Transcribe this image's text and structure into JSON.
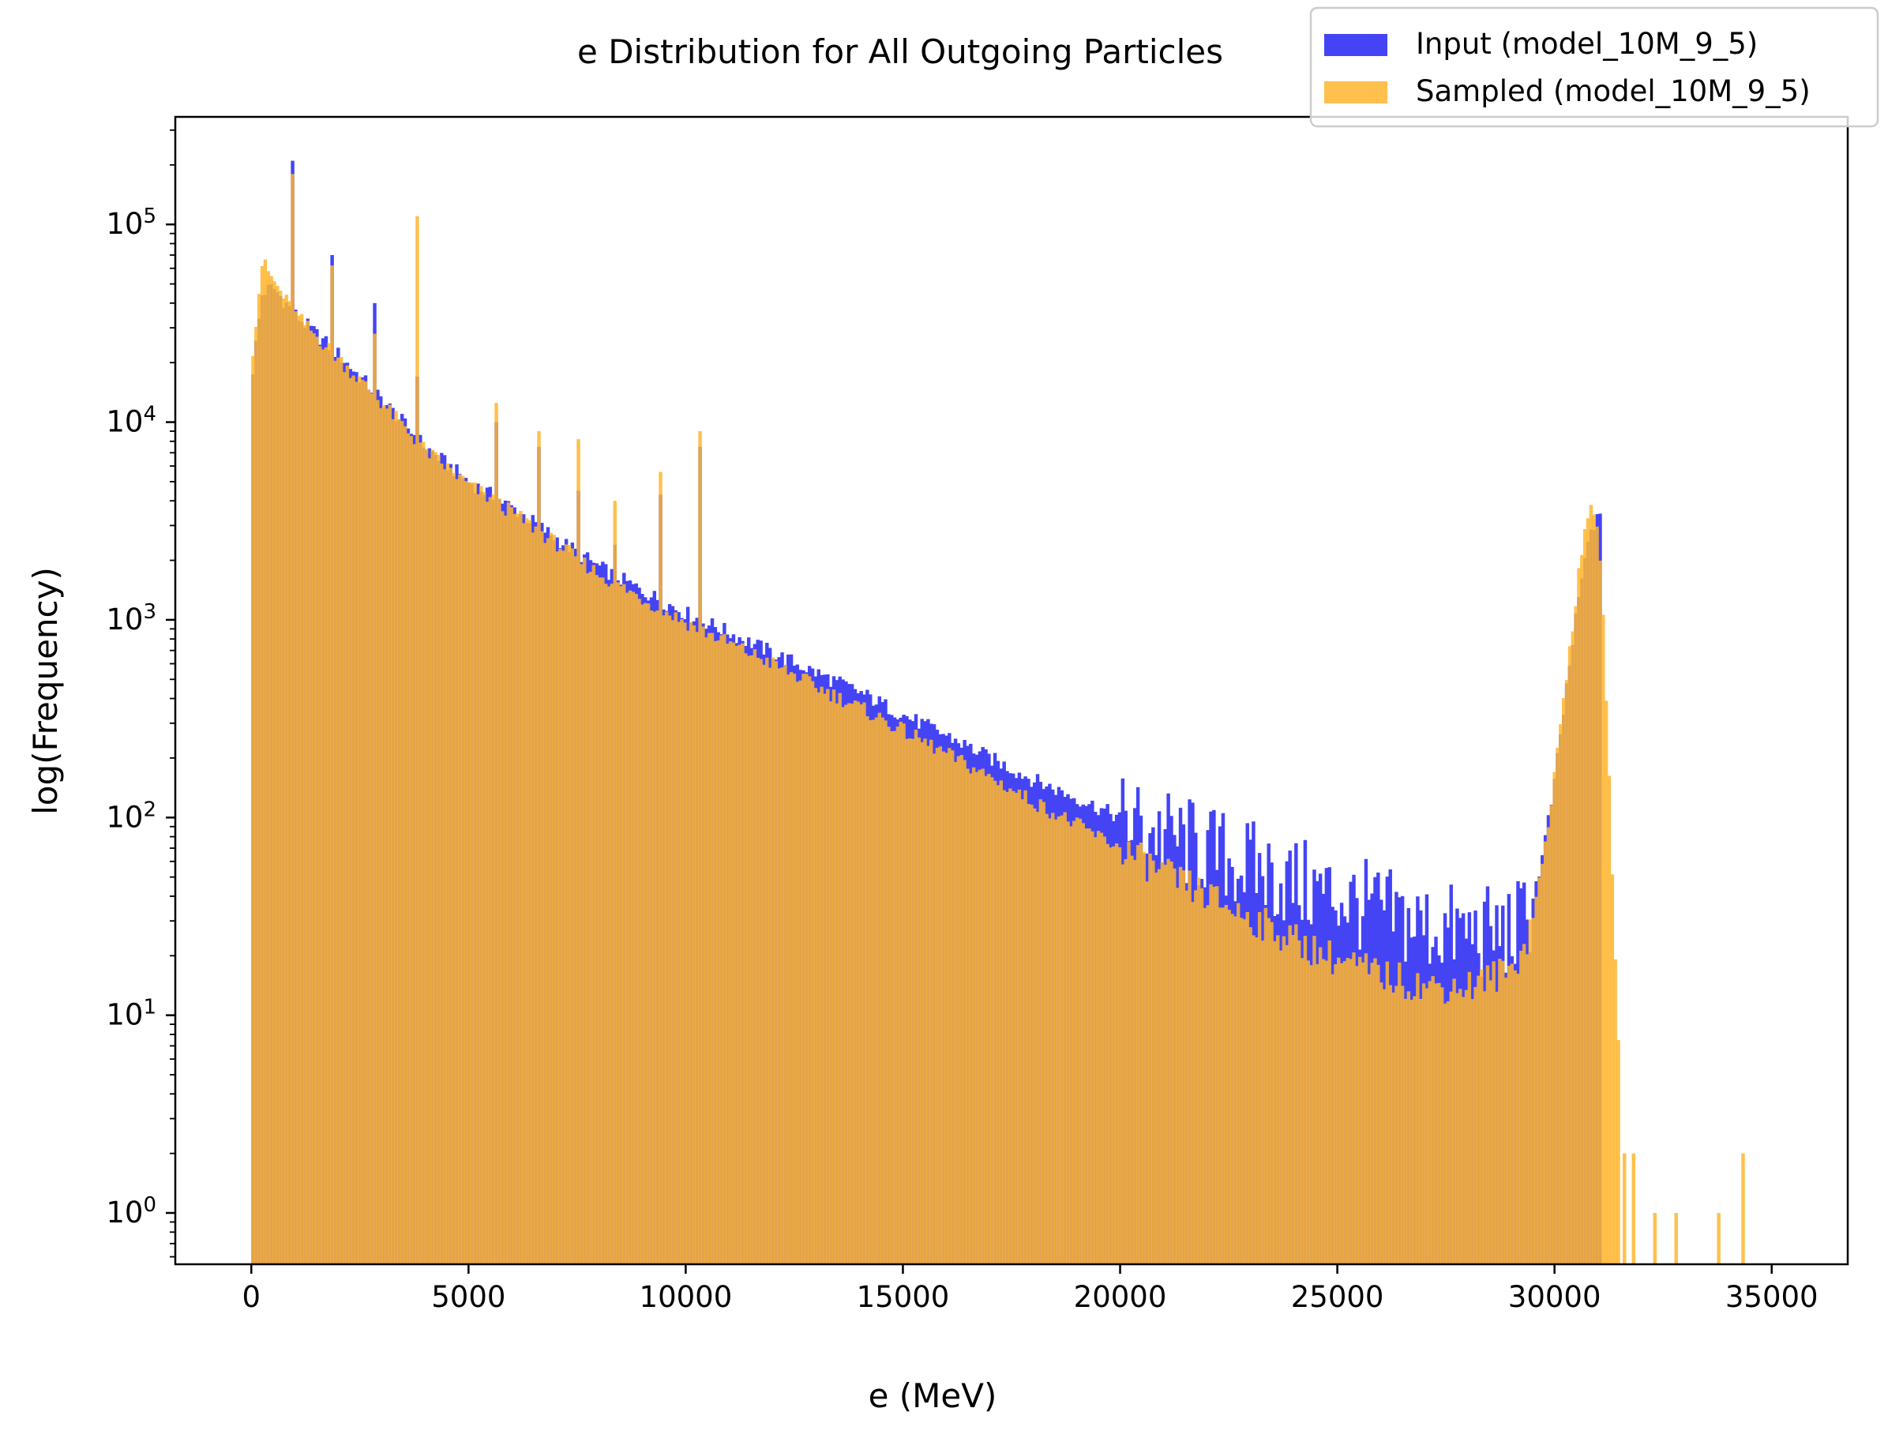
{
  "chart_data": {
    "type": "histogram",
    "title": "e Distribution for All Outgoing Particles",
    "xlabel": "e (MeV)",
    "ylabel": "log(Frequency)",
    "xlim": [
      -1750,
      36750
    ],
    "ylim": [
      0.55,
      350000
    ],
    "y_scale": "log",
    "grid": false,
    "legend_position": "top-right",
    "x_ticks": [
      0,
      5000,
      10000,
      15000,
      20000,
      25000,
      30000,
      35000
    ],
    "y_ticks": [
      {
        "base": "10",
        "exp": "0",
        "value": 1
      },
      {
        "base": "10",
        "exp": "1",
        "value": 10
      },
      {
        "base": "10",
        "exp": "2",
        "value": 100
      },
      {
        "base": "10",
        "exp": "3",
        "value": 1000
      },
      {
        "base": "10",
        "exp": "4",
        "value": 10000
      },
      {
        "base": "10",
        "exp": "5",
        "value": 100000
      }
    ],
    "series": [
      {
        "name": "Input (model_10M_9_5)",
        "color": "#4444f5",
        "alpha": 1.0,
        "continuum": [
          [
            0,
            16000
          ],
          [
            250,
            45000
          ],
          [
            500,
            48000
          ],
          [
            1000,
            35000
          ],
          [
            2000,
            22000
          ],
          [
            3000,
            13000
          ],
          [
            4000,
            7500
          ],
          [
            5000,
            5000
          ],
          [
            6000,
            3700
          ],
          [
            7000,
            2600
          ],
          [
            8000,
            1850
          ],
          [
            9000,
            1400
          ],
          [
            10000,
            1080
          ],
          [
            11000,
            860
          ],
          [
            12000,
            680
          ],
          [
            13000,
            540
          ],
          [
            14000,
            430
          ],
          [
            15000,
            330
          ],
          [
            16000,
            260
          ],
          [
            17000,
            200
          ],
          [
            18000,
            155
          ],
          [
            19000,
            125
          ],
          [
            20000,
            100
          ],
          [
            21000,
            82
          ],
          [
            22000,
            68
          ],
          [
            23000,
            56
          ],
          [
            24000,
            46
          ],
          [
            25000,
            40
          ],
          [
            26000,
            33
          ],
          [
            27000,
            28
          ],
          [
            28000,
            26
          ],
          [
            29000,
            26
          ],
          [
            29400,
            32
          ],
          [
            29700,
            60
          ],
          [
            30000,
            150
          ],
          [
            30300,
            500
          ],
          [
            30600,
            1500
          ],
          [
            30850,
            3000
          ],
          [
            31000,
            3200
          ],
          [
            31150,
            0
          ],
          [
            35500,
            0
          ]
        ],
        "spikes": [
          [
            100,
            17000
          ],
          [
            950,
            210000
          ],
          [
            1850,
            70000
          ],
          [
            2850,
            40000
          ],
          [
            3800,
            17000
          ],
          [
            5650,
            10000
          ],
          [
            6600,
            7500
          ],
          [
            7500,
            4500
          ],
          [
            8350,
            2400
          ],
          [
            9400,
            4300
          ],
          [
            10300,
            7500
          ]
        ]
      },
      {
        "name": "Sampled (model_10M_9_5)",
        "color": "#ffb52e",
        "alpha": 0.85,
        "continuum": [
          [
            0,
            20000
          ],
          [
            250,
            65000
          ],
          [
            500,
            52000
          ],
          [
            1000,
            35000
          ],
          [
            2000,
            21000
          ],
          [
            3000,
            12500
          ],
          [
            4000,
            7200
          ],
          [
            5000,
            4800
          ],
          [
            6000,
            3500
          ],
          [
            7000,
            2450
          ],
          [
            8000,
            1700
          ],
          [
            9000,
            1280
          ],
          [
            10000,
            970
          ],
          [
            11000,
            760
          ],
          [
            12000,
            600
          ],
          [
            13000,
            460
          ],
          [
            14000,
            360
          ],
          [
            15000,
            275
          ],
          [
            16000,
            210
          ],
          [
            17000,
            160
          ],
          [
            18000,
            120
          ],
          [
            19000,
            92
          ],
          [
            20000,
            70
          ],
          [
            21000,
            52
          ],
          [
            22000,
            40
          ],
          [
            23000,
            31
          ],
          [
            24000,
            24
          ],
          [
            25000,
            19
          ],
          [
            26000,
            16
          ],
          [
            27000,
            14
          ],
          [
            28000,
            14
          ],
          [
            29000,
            17
          ],
          [
            29400,
            25
          ],
          [
            29700,
            55
          ],
          [
            30000,
            160
          ],
          [
            30300,
            600
          ],
          [
            30600,
            2000
          ],
          [
            30850,
            4200
          ],
          [
            31000,
            2800
          ],
          [
            31150,
            700
          ],
          [
            31300,
            80
          ],
          [
            31450,
            8
          ],
          [
            31600,
            0
          ],
          [
            35500,
            0
          ]
        ],
        "spikes": [
          [
            0,
            20000
          ],
          [
            950,
            180000
          ],
          [
            1850,
            62000
          ],
          [
            2850,
            28000
          ],
          [
            3800,
            110000
          ],
          [
            5650,
            12500
          ],
          [
            6600,
            9000
          ],
          [
            7500,
            8200
          ],
          [
            8350,
            4000
          ],
          [
            9400,
            5600
          ],
          [
            10300,
            9000
          ],
          [
            31600,
            2
          ],
          [
            31800,
            2
          ],
          [
            32300,
            1
          ],
          [
            32800,
            1
          ],
          [
            33800,
            1
          ],
          [
            34300,
            2
          ]
        ]
      }
    ]
  }
}
